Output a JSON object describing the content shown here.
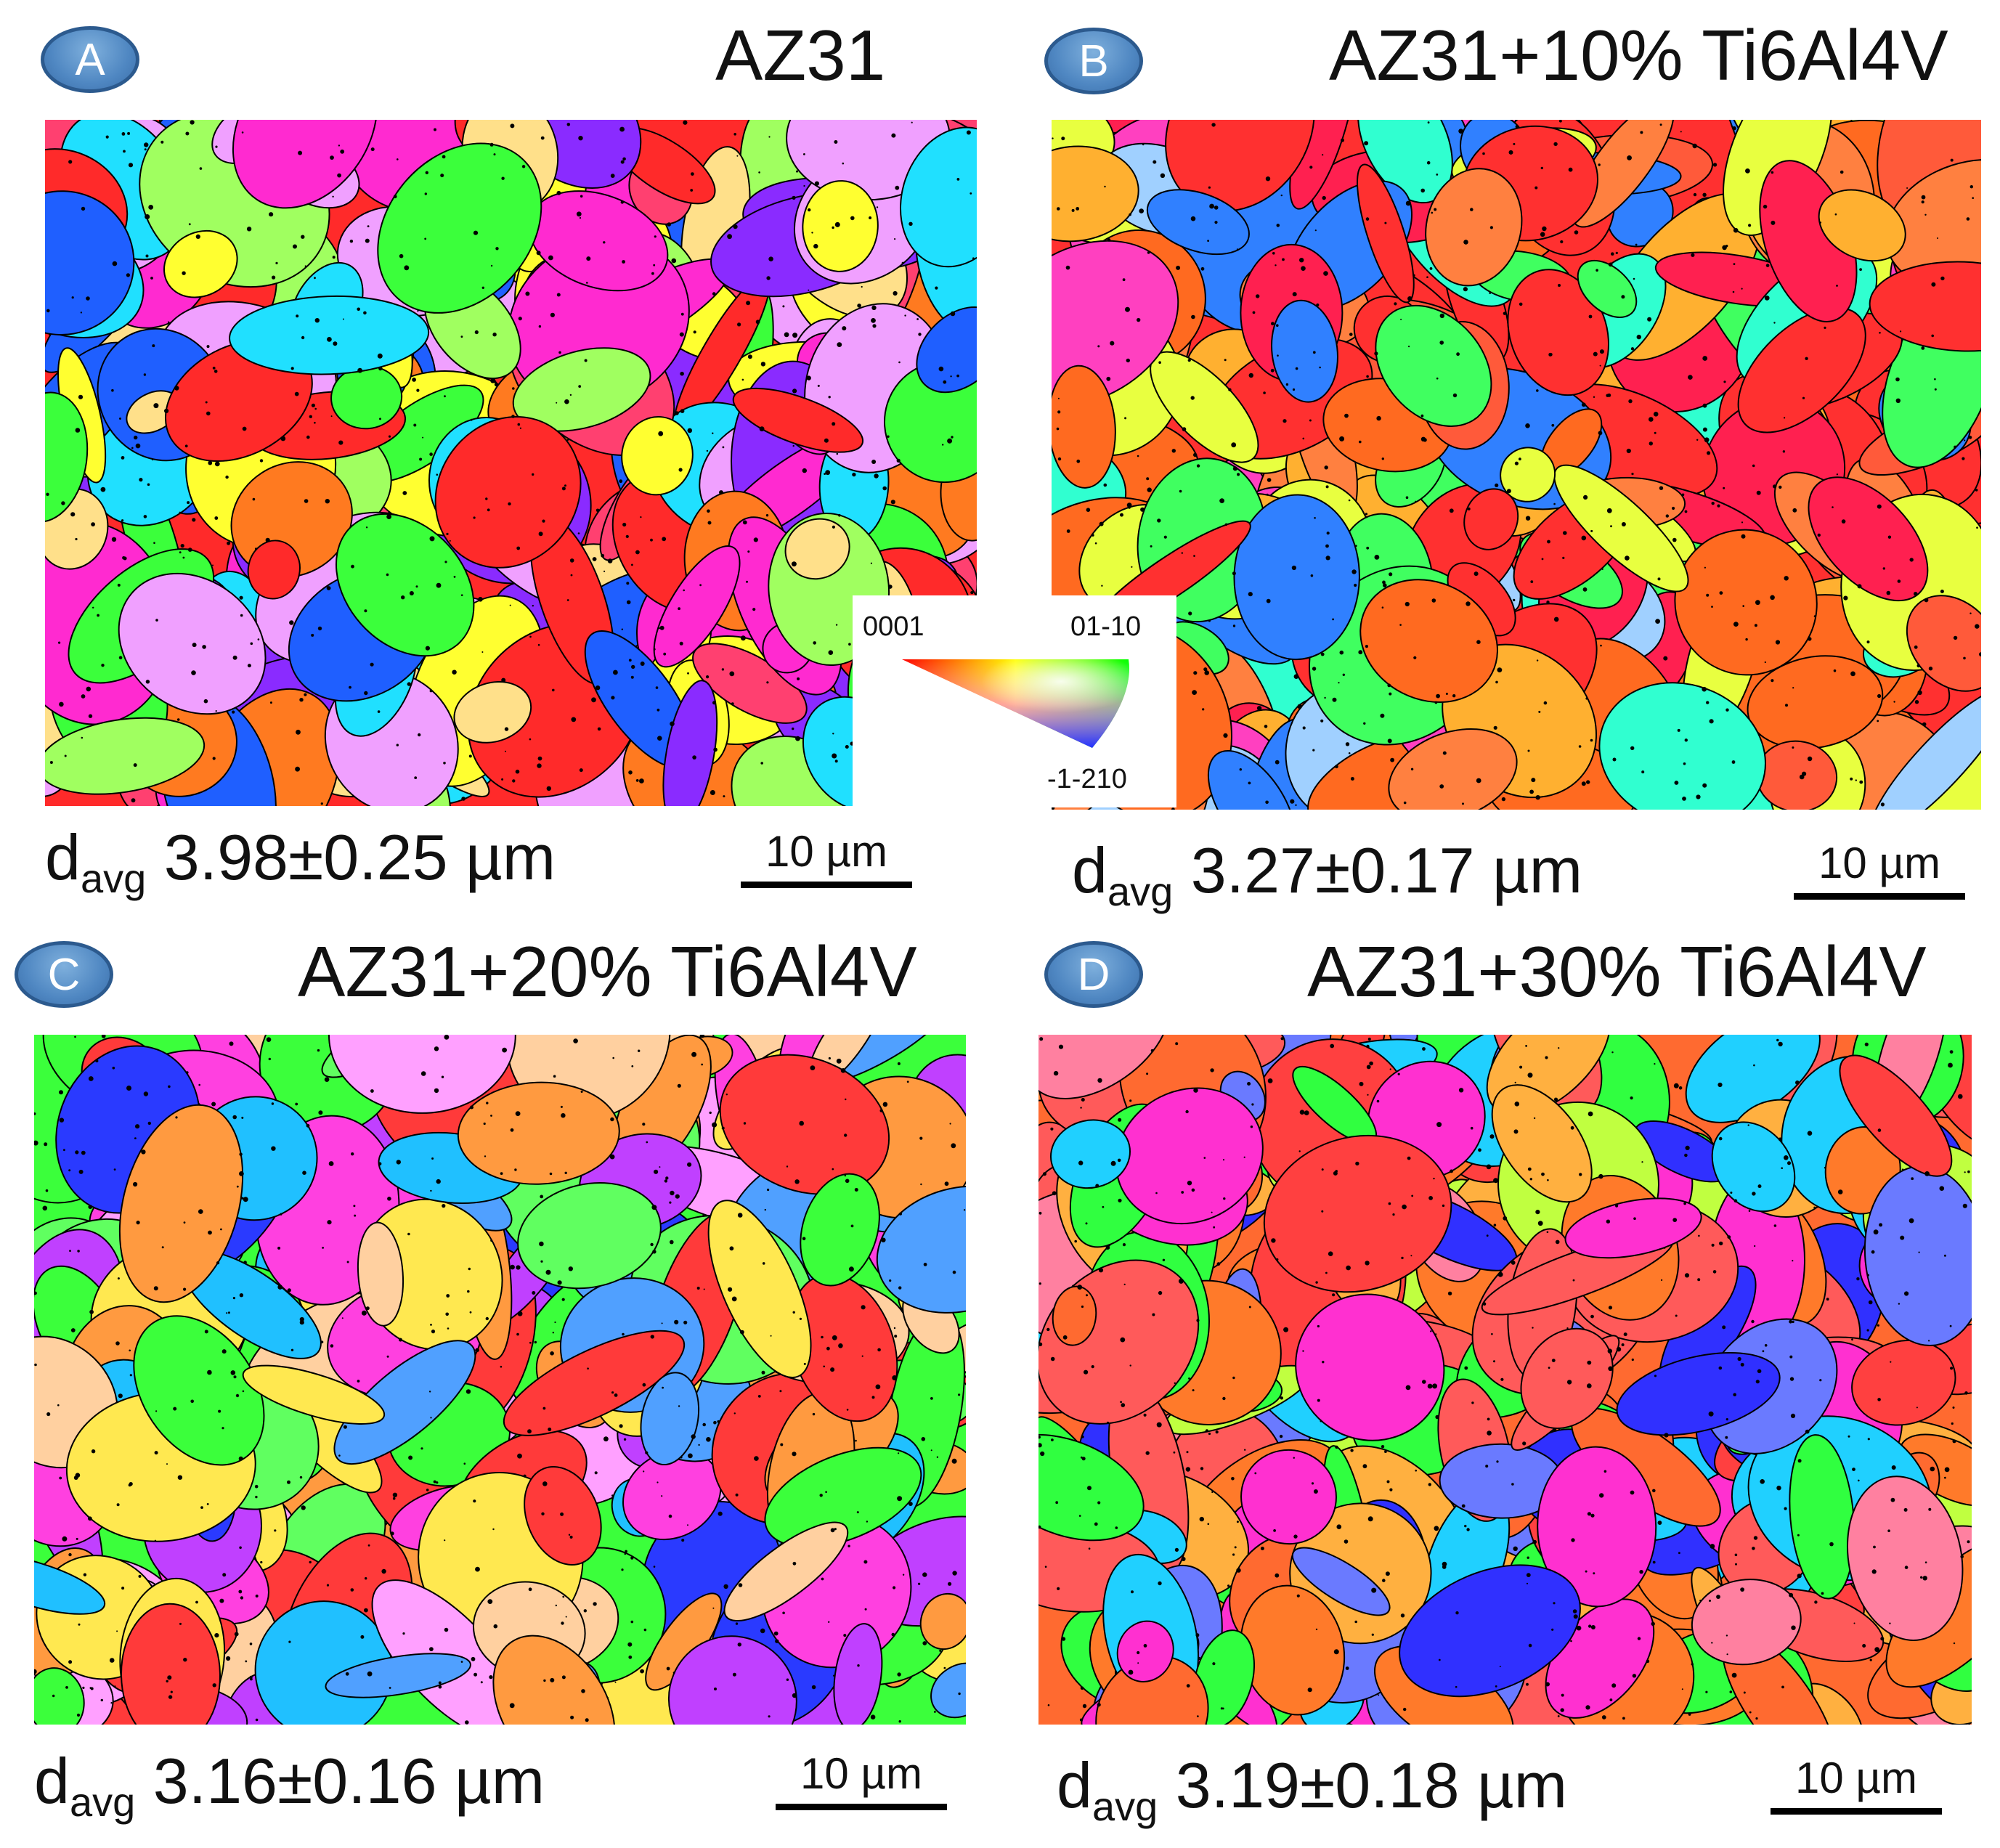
{
  "panels": [
    {
      "badge": "A",
      "title": "AZ31",
      "d_label": "d",
      "d_sub": "avg",
      "d_value": "3.98±0.25 µm",
      "scale": "10 µm"
    },
    {
      "badge": "B",
      "title": "AZ31+10% Ti6Al4V",
      "d_label": "d",
      "d_sub": "avg",
      "d_value": "3.27±0.17 µm",
      "scale": "10 µm"
    },
    {
      "badge": "C",
      "title": "AZ31+20% Ti6Al4V",
      "d_label": "d",
      "d_sub": "avg",
      "d_value": "3.16±0.16 µm",
      "scale": "10 µm"
    },
    {
      "badge": "D",
      "title": "AZ31+30% Ti6Al4V",
      "d_label": "d",
      "d_sub": "avg",
      "d_value": "3.19±0.18 µm",
      "scale": "10 µm"
    }
  ],
  "legend": {
    "top_left": "0001",
    "top_right": "01-10",
    "bottom": "-1-210"
  },
  "colors": {
    "badge": "#4f87c2",
    "ipf_red": "#ff2020",
    "ipf_green": "#20ff20",
    "ipf_blue": "#2040ff"
  }
}
